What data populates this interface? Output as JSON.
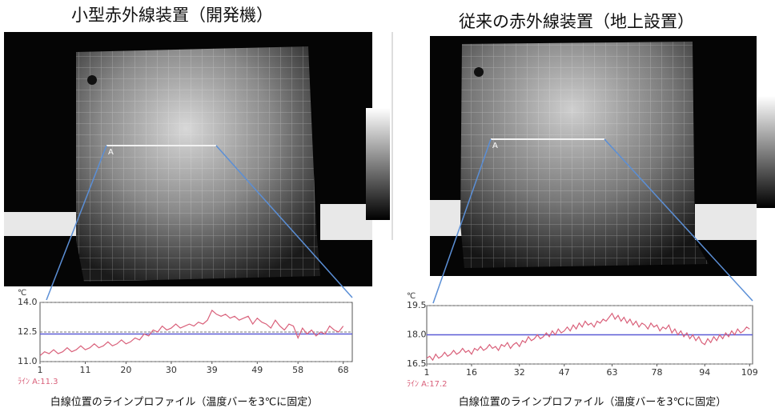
{
  "chart_data": [
    {
      "type": "line",
      "title": "小型赤外線装置（開発機）",
      "marker_label": "A",
      "y_label": "℃",
      "cursor_label": "ﾗｲﾝ A:11.3",
      "caption": "白線位置のラインプロファイル（温度バーを3℃に固定）",
      "xlim": [
        1,
        70
      ],
      "xticks": [
        1,
        11,
        20,
        30,
        39,
        49,
        58,
        68
      ],
      "ylim": [
        11,
        14
      ],
      "yticks": [
        {
          "value": 11,
          "label": "11.0"
        },
        {
          "value": 12.5,
          "label": "12.5"
        },
        {
          "value": 14,
          "label": "14.0"
        }
      ],
      "grid": true,
      "reference_line": {
        "value": 12.4,
        "color": "#5b5bd6"
      },
      "x": [
        1,
        2,
        3,
        4,
        5,
        6,
        7,
        8,
        9,
        10,
        11,
        12,
        13,
        14,
        15,
        16,
        17,
        18,
        19,
        20,
        21,
        22,
        23,
        24,
        25,
        26,
        27,
        28,
        29,
        30,
        31,
        32,
        33,
        34,
        35,
        36,
        37,
        38,
        39,
        40,
        41,
        42,
        43,
        44,
        45,
        46,
        47,
        48,
        49,
        50,
        51,
        52,
        53,
        54,
        55,
        56,
        57,
        58,
        59,
        60,
        61,
        62,
        63,
        64,
        65,
        66,
        67,
        68
      ],
      "series": [
        {
          "color": "#d9607a",
          "values": [
            11.3,
            11.5,
            11.4,
            11.6,
            11.4,
            11.5,
            11.7,
            11.5,
            11.6,
            11.8,
            11.6,
            11.7,
            11.9,
            11.7,
            11.8,
            12.0,
            11.8,
            11.9,
            12.1,
            11.9,
            12.0,
            12.2,
            12.1,
            12.4,
            12.3,
            12.6,
            12.5,
            12.8,
            12.6,
            12.7,
            12.9,
            12.7,
            12.8,
            12.9,
            12.8,
            13.0,
            12.9,
            13.1,
            13.6,
            13.4,
            13.3,
            13.4,
            13.2,
            13.3,
            13.1,
            13.2,
            13.3,
            12.9,
            13.2,
            13.0,
            12.9,
            12.7,
            13.1,
            12.8,
            12.6,
            12.9,
            12.8,
            12.2,
            12.7,
            12.4,
            12.6,
            12.3,
            12.5,
            12.4,
            12.8,
            12.6,
            12.5,
            12.8
          ]
        }
      ]
    },
    {
      "type": "line",
      "title": "従来の赤外線装置（地上設置）",
      "marker_label": "A",
      "y_label": "℃",
      "cursor_label": "ﾗｲﾝ A:17.2",
      "caption": "白線位置のラインプロファイル（温度バーを3℃に固定）",
      "xlim": [
        1,
        110
      ],
      "xticks": [
        1,
        16,
        32,
        47,
        63,
        78,
        94,
        109
      ],
      "ylim": [
        16.5,
        19.5
      ],
      "yticks": [
        16.5,
        {
          "value": 18,
          "label": "18.0"
        },
        19.5
      ],
      "grid": true,
      "reference_line": {
        "value": 18.0,
        "color": "#5b5bd6"
      },
      "x": [
        1,
        2,
        3,
        4,
        5,
        6,
        7,
        8,
        9,
        10,
        11,
        12,
        13,
        14,
        15,
        16,
        17,
        18,
        19,
        20,
        21,
        22,
        23,
        24,
        25,
        26,
        27,
        28,
        29,
        30,
        31,
        32,
        33,
        34,
        35,
        36,
        37,
        38,
        39,
        40,
        41,
        42,
        43,
        44,
        45,
        46,
        47,
        48,
        49,
        50,
        51,
        52,
        53,
        54,
        55,
        56,
        57,
        58,
        59,
        60,
        61,
        62,
        63,
        64,
        65,
        66,
        67,
        68,
        69,
        70,
        71,
        72,
        73,
        74,
        75,
        76,
        77,
        78,
        79,
        80,
        81,
        82,
        83,
        84,
        85,
        86,
        87,
        88,
        89,
        90,
        91,
        92,
        93,
        94,
        95,
        96,
        97,
        98,
        99,
        100,
        101,
        102,
        103,
        104,
        105,
        106,
        107,
        108,
        109
      ],
      "series": [
        {
          "color": "#d9607a",
          "values": [
            16.8,
            16.9,
            16.7,
            17.0,
            16.8,
            16.9,
            17.1,
            16.9,
            17.0,
            17.2,
            17.0,
            17.1,
            17.3,
            17.1,
            17.2,
            17.0,
            17.3,
            17.2,
            17.4,
            17.2,
            17.3,
            17.5,
            17.3,
            17.4,
            17.2,
            17.5,
            17.4,
            17.6,
            17.3,
            17.5,
            17.6,
            17.4,
            17.7,
            17.6,
            17.9,
            17.7,
            17.8,
            18.0,
            17.8,
            17.9,
            18.1,
            17.9,
            18.2,
            18.0,
            18.3,
            18.1,
            18.2,
            18.4,
            18.2,
            18.5,
            18.3,
            18.6,
            18.4,
            18.7,
            18.5,
            18.6,
            18.4,
            18.7,
            18.6,
            18.8,
            18.7,
            18.9,
            19.1,
            18.8,
            19.0,
            18.7,
            18.9,
            18.6,
            18.8,
            18.5,
            18.7,
            18.4,
            18.6,
            18.5,
            18.3,
            18.6,
            18.4,
            18.5,
            18.2,
            18.4,
            18.3,
            18.5,
            18.1,
            18.3,
            18.0,
            18.2,
            17.9,
            18.1,
            17.8,
            18.0,
            17.7,
            17.9,
            17.6,
            17.5,
            17.8,
            17.6,
            17.9,
            17.7,
            18.0,
            17.8,
            18.1,
            17.9,
            18.2,
            18.0,
            18.3,
            18.1,
            18.2,
            18.4,
            18.3
          ]
        }
      ]
    }
  ]
}
